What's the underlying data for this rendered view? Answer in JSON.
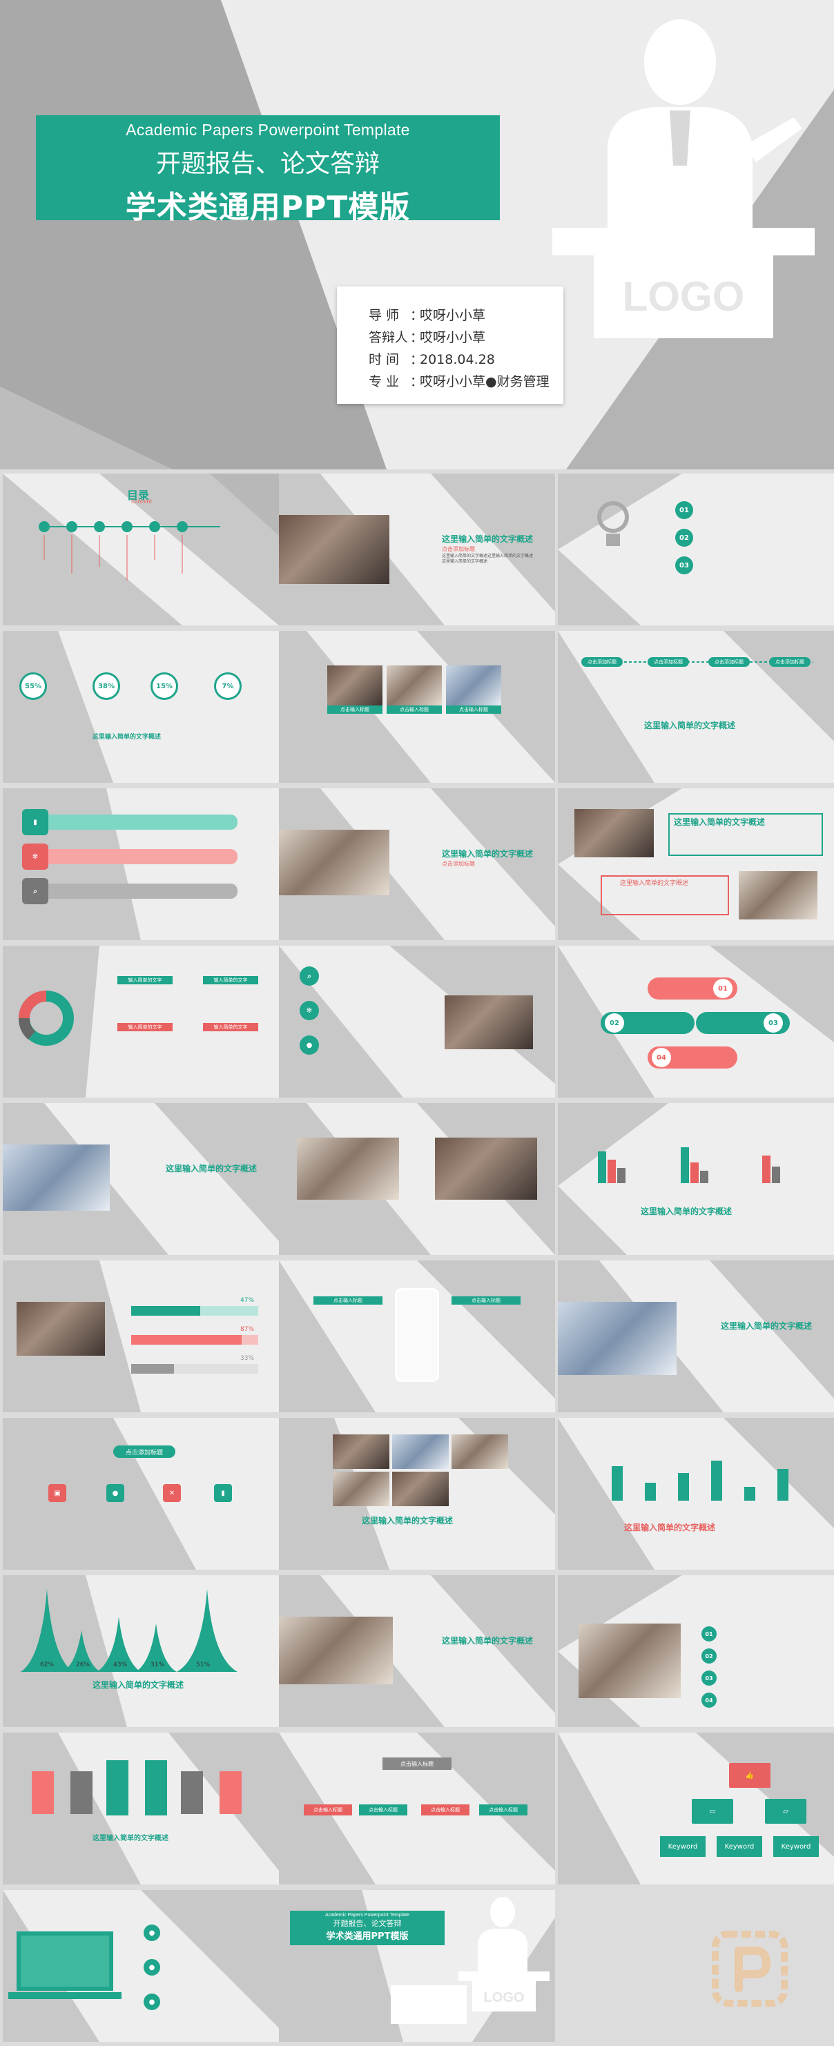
{
  "hero": {
    "title_en": "Academic Papers Powerpoint Template",
    "title_cn1": "开题报告、论文答辩",
    "title_cn2": "学术类通用PPT模版",
    "logo_text": "LOGO",
    "info": [
      {
        "label": "导   师",
        "value": "哎呀小小草"
      },
      {
        "label": "答辩人",
        "value": "哎呀小小草"
      },
      {
        "label": "时   间",
        "value": "2018.04.28"
      },
      {
        "label": "专   业",
        "value": "哎呀小小草●财务管理"
      }
    ]
  },
  "thumbs": {
    "toc_title": "目录",
    "toc_sub": "content",
    "overview": "这里输入简单的文字概述",
    "overview_sub": "点击添加标题",
    "click_title": "点击添加标题",
    "click_input": "点击输入标题",
    "input_title": "输入简单的文字",
    "add_title": "添加标题",
    "percents_circle": [
      "55%",
      "38%",
      "15%",
      "7%"
    ],
    "percents_bar": [
      "47%",
      "87%",
      "33%"
    ],
    "percents_peak": [
      "62%",
      "26%",
      "43%",
      "31%",
      "51%"
    ],
    "numbers": [
      "01",
      "02",
      "03",
      "04"
    ],
    "keyword": "Keyword",
    "logo_small": "LOGO",
    "mini_title_en": "Academic Papers Powerpoint Template",
    "mini_title_cn1": "开题报告、论文答辩",
    "mini_title_cn2": "学术类通用PPT模版",
    "vertical_labels": [
      "点击添加标题",
      "点击添加标题"
    ]
  }
}
